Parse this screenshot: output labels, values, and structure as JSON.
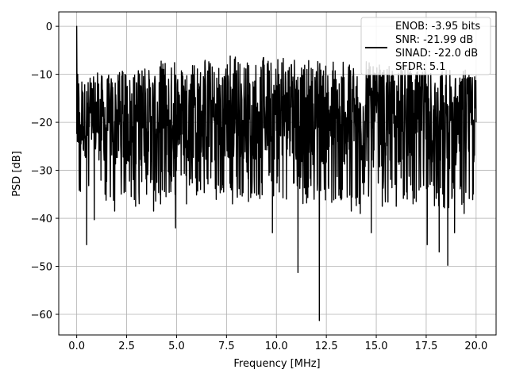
{
  "chart_data": {
    "type": "line",
    "xlabel": "Frequency [MHz]",
    "ylabel": "PSD [dB]",
    "xlim": [
      -0.9,
      21.0
    ],
    "ylim": [
      -64.3,
      3.0
    ],
    "xticks": [
      0.0,
      2.5,
      5.0,
      7.5,
      10.0,
      12.5,
      15.0,
      17.5,
      20.0
    ],
    "xtick_labels": [
      "0.0",
      "2.5",
      "5.0",
      "7.5",
      "10.0",
      "12.5",
      "15.0",
      "17.5",
      "20.0"
    ],
    "yticks": [
      0,
      -10,
      -20,
      -30,
      -40,
      -50,
      -60
    ],
    "ytick_labels": [
      "0",
      "−10",
      "−20",
      "−30",
      "−40",
      "−50",
      "−60"
    ],
    "grid": true,
    "legend_position": "top-right",
    "legend_entries": [
      "ENOB: -3.95 bits",
      "SNR: -21.99 dB",
      "SINAD: -22.0 dB",
      "SFDR: 5.1"
    ],
    "series": [
      {
        "color": "#000000",
        "x": [
          0.0,
          0.03,
          0.05,
          0.08,
          0.1,
          0.12,
          0.15,
          0.5,
          0.62,
          0.88,
          1.42,
          1.9,
          2.95,
          3.5,
          3.85,
          4.2,
          4.95,
          5.5,
          6.2,
          7.0,
          7.8,
          8.6,
          9.1,
          9.8,
          10.5,
          11.08,
          11.6,
          12.15,
          12.6,
          13.3,
          13.75,
          14.2,
          14.75,
          15.3,
          16.0,
          16.55,
          17.0,
          17.55,
          18.15,
          18.58,
          18.92,
          19.4,
          20.0
        ],
        "y": [
          0.0,
          -24.0,
          -10.0,
          -22.0,
          -12.0,
          -30.0,
          -18.0,
          -45.5,
          -18.0,
          -40.3,
          -35.0,
          -38.5,
          -37.5,
          -35.0,
          -38.5,
          -37.0,
          -42.0,
          -37.0,
          -34.0,
          -33.0,
          -37.0,
          -36.5,
          -35.0,
          -43.0,
          -36.0,
          -51.3,
          -33.5,
          -61.3,
          -33.0,
          -34.0,
          -38.5,
          -39.0,
          -43.0,
          -37.5,
          -37.5,
          -36.0,
          -36.5,
          -45.5,
          -47.0,
          -49.8,
          -43.0,
          -39.0,
          -20.0
        ],
        "envelope_top": [
          -12,
          -10,
          -10,
          -9,
          -8,
          -8,
          -8,
          -7,
          -7,
          -7,
          -8,
          -8,
          -8,
          -8,
          -9,
          -9,
          -10,
          -10,
          -10
        ],
        "envelope_bottom": [
          -27,
          -28,
          -30,
          -29,
          -28,
          -28,
          -29,
          -29,
          -28,
          -28,
          -29,
          -29,
          -29,
          -30,
          -29,
          -29,
          -30,
          -30,
          -29
        ]
      }
    ]
  }
}
